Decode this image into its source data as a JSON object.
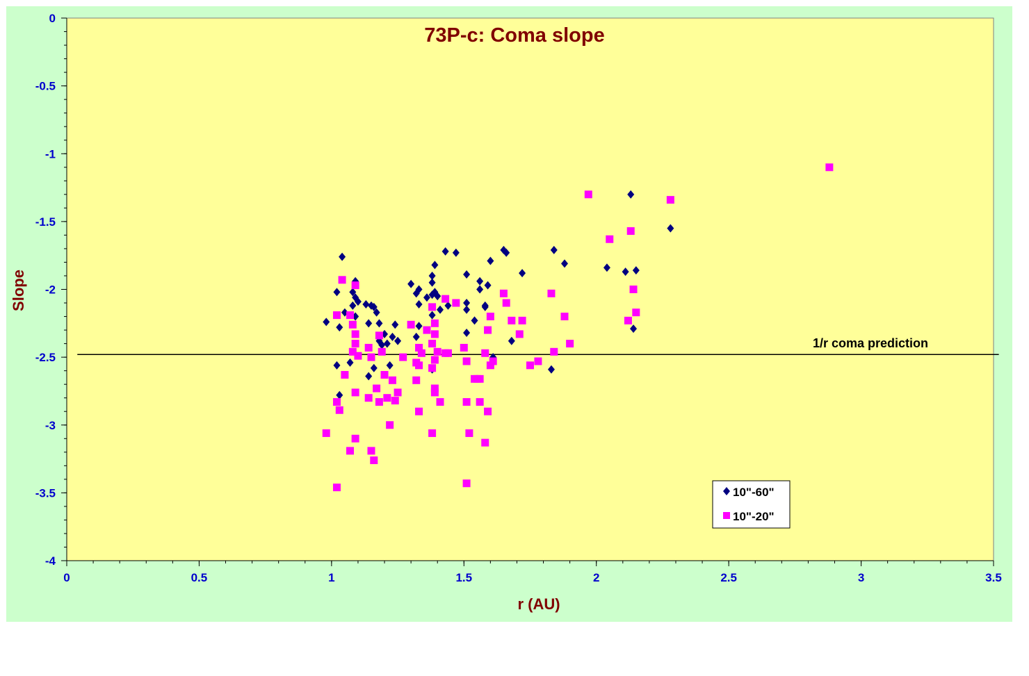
{
  "chart_data": {
    "type": "scatter",
    "title": "73P-c: Coma slope",
    "xlabel": "r (AU)",
    "ylabel": "Slope",
    "xlim": [
      0,
      3.5
    ],
    "ylim": [
      -4,
      0
    ],
    "x_ticks": [
      "0",
      "0.5",
      "1",
      "1.5",
      "2",
      "2.5",
      "3",
      "3.5"
    ],
    "y_ticks": [
      "0",
      "-0.5",
      "-1",
      "-1.5",
      "-2",
      "-2.5",
      "-3",
      "-3.5",
      "-4"
    ],
    "x_tick_values": [
      0,
      0.5,
      1,
      1.5,
      2,
      2.5,
      3,
      3.5
    ],
    "y_tick_values": [
      0,
      -0.5,
      -1,
      -1.5,
      -2,
      -2.5,
      -3,
      -3.5,
      -4
    ],
    "grid": false,
    "legend_position": "bottom-right",
    "colors": {
      "outer_background": "#ccffcc",
      "plot_background": "#ffff99",
      "title": "#800000",
      "axis_label": "#800000",
      "tick_label": "#0000cc",
      "series1": "#000080",
      "series2": "#ff00ff"
    },
    "reference_line": {
      "y": -2.48,
      "x_range": [
        0.04,
        3.52
      ],
      "label": "1/r coma prediction"
    },
    "series": [
      {
        "name": "10\"-60\"",
        "marker": "diamond",
        "points": [
          [
            0.98,
            -2.24
          ],
          [
            1.02,
            -2.02
          ],
          [
            1.03,
            -2.28
          ],
          [
            1.04,
            -1.76
          ],
          [
            1.05,
            -2.17
          ],
          [
            1.02,
            -2.56
          ],
          [
            1.03,
            -2.78
          ],
          [
            1.07,
            -2.54
          ],
          [
            1.08,
            -2.02
          ],
          [
            1.08,
            -2.12
          ],
          [
            1.09,
            -2.06
          ],
          [
            1.09,
            -1.94
          ],
          [
            1.1,
            -2.09
          ],
          [
            1.09,
            -2.2
          ],
          [
            1.13,
            -2.11
          ],
          [
            1.14,
            -2.25
          ],
          [
            1.15,
            -2.12
          ],
          [
            1.16,
            -2.13
          ],
          [
            1.17,
            -2.17
          ],
          [
            1.18,
            -2.25
          ],
          [
            1.14,
            -2.64
          ],
          [
            1.16,
            -2.58
          ],
          [
            1.18,
            -2.38
          ],
          [
            1.19,
            -2.41
          ],
          [
            1.2,
            -2.33
          ],
          [
            1.21,
            -2.4
          ],
          [
            1.22,
            -2.56
          ],
          [
            1.23,
            -2.35
          ],
          [
            1.24,
            -2.26
          ],
          [
            1.25,
            -2.38
          ],
          [
            1.3,
            -1.96
          ],
          [
            1.32,
            -2.03
          ],
          [
            1.33,
            -2.0
          ],
          [
            1.33,
            -2.11
          ],
          [
            1.32,
            -2.35
          ],
          [
            1.33,
            -2.27
          ],
          [
            1.36,
            -2.06
          ],
          [
            1.38,
            -2.19
          ],
          [
            1.38,
            -2.04
          ],
          [
            1.39,
            -2.02
          ],
          [
            1.38,
            -1.95
          ],
          [
            1.38,
            -1.9
          ],
          [
            1.39,
            -1.82
          ],
          [
            1.4,
            -2.05
          ],
          [
            1.41,
            -2.15
          ],
          [
            1.43,
            -1.72
          ],
          [
            1.44,
            -2.12
          ],
          [
            1.47,
            -1.73
          ],
          [
            1.38,
            -2.59
          ],
          [
            1.51,
            -1.89
          ],
          [
            1.51,
            -2.1
          ],
          [
            1.51,
            -2.15
          ],
          [
            1.54,
            -2.23
          ],
          [
            1.51,
            -2.32
          ],
          [
            1.56,
            -1.94
          ],
          [
            1.56,
            -2.0
          ],
          [
            1.58,
            -2.12
          ],
          [
            1.58,
            -2.13
          ],
          [
            1.59,
            -1.97
          ],
          [
            1.6,
            -1.79
          ],
          [
            1.61,
            -2.5
          ],
          [
            1.65,
            -1.71
          ],
          [
            1.66,
            -1.73
          ],
          [
            1.68,
            -2.38
          ],
          [
            1.72,
            -1.88
          ],
          [
            1.83,
            -2.59
          ],
          [
            1.84,
            -1.71
          ],
          [
            1.88,
            -1.81
          ],
          [
            2.04,
            -1.84
          ],
          [
            2.11,
            -1.87
          ],
          [
            2.13,
            -1.3
          ],
          [
            2.14,
            -2.29
          ],
          [
            2.15,
            -1.86
          ],
          [
            2.28,
            -1.55
          ]
        ]
      },
      {
        "name": "10\"-20\"",
        "marker": "square",
        "points": [
          [
            0.98,
            -3.06
          ],
          [
            1.02,
            -2.19
          ],
          [
            1.02,
            -3.46
          ],
          [
            1.02,
            -2.83
          ],
          [
            1.03,
            -2.89
          ],
          [
            1.04,
            -1.93
          ],
          [
            1.05,
            -2.63
          ],
          [
            1.07,
            -2.19
          ],
          [
            1.07,
            -3.19
          ],
          [
            1.08,
            -2.26
          ],
          [
            1.08,
            -2.46
          ],
          [
            1.09,
            -2.4
          ],
          [
            1.09,
            -2.33
          ],
          [
            1.09,
            -2.76
          ],
          [
            1.09,
            -3.1
          ],
          [
            1.09,
            -1.97
          ],
          [
            1.1,
            -2.49
          ],
          [
            1.14,
            -2.43
          ],
          [
            1.14,
            -2.8
          ],
          [
            1.15,
            -2.5
          ],
          [
            1.15,
            -3.19
          ],
          [
            1.16,
            -3.26
          ],
          [
            1.17,
            -2.73
          ],
          [
            1.18,
            -2.83
          ],
          [
            1.18,
            -2.34
          ],
          [
            1.19,
            -2.46
          ],
          [
            1.2,
            -2.63
          ],
          [
            1.21,
            -2.8
          ],
          [
            1.22,
            -3.0
          ],
          [
            1.23,
            -2.67
          ],
          [
            1.24,
            -2.82
          ],
          [
            1.25,
            -2.76
          ],
          [
            1.27,
            -2.5
          ],
          [
            1.3,
            -2.26
          ],
          [
            1.32,
            -2.54
          ],
          [
            1.32,
            -2.67
          ],
          [
            1.33,
            -2.9
          ],
          [
            1.33,
            -2.56
          ],
          [
            1.33,
            -2.43
          ],
          [
            1.34,
            -2.47
          ],
          [
            1.36,
            -2.3
          ],
          [
            1.38,
            -2.4
          ],
          [
            1.38,
            -2.13
          ],
          [
            1.38,
            -2.58
          ],
          [
            1.39,
            -2.25
          ],
          [
            1.39,
            -2.52
          ],
          [
            1.39,
            -2.73
          ],
          [
            1.39,
            -2.76
          ],
          [
            1.39,
            -2.33
          ],
          [
            1.4,
            -2.46
          ],
          [
            1.41,
            -2.83
          ],
          [
            1.38,
            -3.06
          ],
          [
            1.43,
            -2.07
          ],
          [
            1.43,
            -2.47
          ],
          [
            1.44,
            -2.47
          ],
          [
            1.47,
            -2.1
          ],
          [
            1.5,
            -2.43
          ],
          [
            1.51,
            -2.53
          ],
          [
            1.51,
            -2.83
          ],
          [
            1.51,
            -3.43
          ],
          [
            1.52,
            -3.06
          ],
          [
            1.54,
            -2.66
          ],
          [
            1.55,
            -2.66
          ],
          [
            1.56,
            -2.66
          ],
          [
            1.56,
            -2.83
          ],
          [
            1.58,
            -2.47
          ],
          [
            1.58,
            -3.13
          ],
          [
            1.59,
            -2.3
          ],
          [
            1.59,
            -2.9
          ],
          [
            1.6,
            -2.2
          ],
          [
            1.6,
            -2.56
          ],
          [
            1.61,
            -2.53
          ],
          [
            1.65,
            -2.03
          ],
          [
            1.66,
            -2.1
          ],
          [
            1.68,
            -2.23
          ],
          [
            1.71,
            -2.33
          ],
          [
            1.72,
            -2.23
          ],
          [
            1.75,
            -2.56
          ],
          [
            1.78,
            -2.53
          ],
          [
            1.83,
            -2.03
          ],
          [
            1.84,
            -2.46
          ],
          [
            1.88,
            -2.2
          ],
          [
            1.9,
            -2.4
          ],
          [
            1.97,
            -1.3
          ],
          [
            2.05,
            -1.63
          ],
          [
            2.12,
            -2.23
          ],
          [
            2.13,
            -1.57
          ],
          [
            2.14,
            -2.0
          ],
          [
            2.15,
            -2.17
          ],
          [
            2.28,
            -1.34
          ],
          [
            2.88,
            -1.1
          ]
        ]
      }
    ]
  }
}
